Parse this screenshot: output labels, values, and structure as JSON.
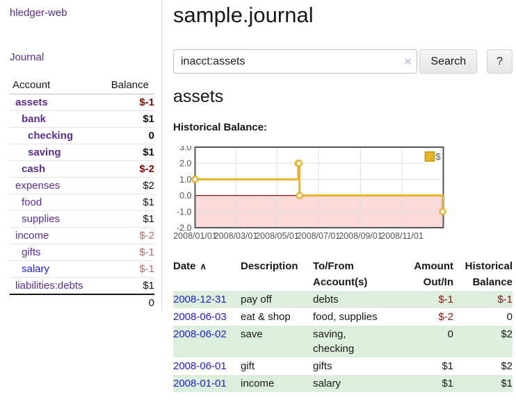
{
  "sidebar": {
    "brand": "hledger-web",
    "journal_link": "Journal",
    "accounts_table": {
      "headers": [
        "Account",
        "Balance"
      ],
      "rows": [
        {
          "name": "assets",
          "level": 0,
          "bold": true,
          "color": "purple",
          "balance": "$-1",
          "balance_style": "neg-strong"
        },
        {
          "name": "bank",
          "level": 1,
          "bold": true,
          "color": "purple",
          "balance": "$1",
          "balance_style": "strong"
        },
        {
          "name": "checking",
          "level": 2,
          "bold": true,
          "color": "purple",
          "balance": "0",
          "balance_style": "strong"
        },
        {
          "name": "saving",
          "level": 2,
          "bold": true,
          "color": "purple",
          "balance": "$1",
          "balance_style": "strong"
        },
        {
          "name": "cash",
          "level": 1,
          "bold": true,
          "color": "purple",
          "balance": "$-2",
          "balance_style": "neg-strong"
        },
        {
          "name": "expenses",
          "level": 0,
          "bold": false,
          "color": "purple",
          "balance": "$2",
          "balance_style": "plain"
        },
        {
          "name": "food",
          "level": 1,
          "bold": false,
          "color": "purple",
          "balance": "$1",
          "balance_style": "plain"
        },
        {
          "name": "supplies",
          "level": 1,
          "bold": false,
          "color": "purple",
          "balance": "$1",
          "balance_style": "plain"
        },
        {
          "name": "income",
          "level": 0,
          "bold": false,
          "color": "purple",
          "balance": "$-2",
          "balance_style": "neg-soft"
        },
        {
          "name": "gifts",
          "level": 1,
          "bold": false,
          "color": "purple",
          "balance": "$-1",
          "balance_style": "neg-soft"
        },
        {
          "name": "salary",
          "level": 1,
          "bold": false,
          "color": "blue",
          "balance": "$-1",
          "balance_style": "neg-soft"
        },
        {
          "name": "liabilities:debts",
          "level": 0,
          "bold": false,
          "color": "purple",
          "balance": "$1",
          "balance_style": "plain"
        }
      ],
      "total": "0"
    }
  },
  "main": {
    "title": "sample.journal",
    "search": {
      "value": "inacct:assets",
      "clear_icon": "×",
      "button_label": "Search",
      "help_label": "?"
    },
    "account_heading": "assets",
    "chart_title": "Historical Balance:"
  },
  "register": {
    "headers": [
      "Date",
      "Description",
      "To/From Account(s)",
      "Amount Out/In",
      "Historical Balance"
    ],
    "header_keys": [
      "date",
      "description",
      "accounts",
      "amount",
      "balance"
    ],
    "sort": {
      "column": "Date",
      "icon": "∧"
    },
    "transactions": [
      {
        "date": "2008-12-31",
        "description": "pay off",
        "accounts": [
          "debts"
        ],
        "amount": "$-1",
        "amount_negative": true,
        "balance": "$-1",
        "balance_negative": true
      },
      {
        "date": "2008-06-03",
        "description": "eat & shop",
        "accounts": [
          "food, supplies"
        ],
        "amount": "$-2",
        "amount_negative": true,
        "balance": "0",
        "balance_negative": false
      },
      {
        "date": "2008-06-02",
        "description": "save",
        "accounts": [
          "saving,",
          "checking"
        ],
        "amount": "0",
        "amount_negative": false,
        "balance": "$2",
        "balance_negative": false
      },
      {
        "date": "2008-06-01",
        "description": "gift",
        "accounts": [
          "gifts"
        ],
        "amount": "$1",
        "amount_negative": false,
        "balance": "$2",
        "balance_negative": false
      },
      {
        "date": "2008-01-01",
        "description": "income",
        "accounts": [
          "salary"
        ],
        "amount": "$1",
        "amount_negative": false,
        "balance": "$1",
        "balance_negative": false
      }
    ]
  },
  "chart_data": {
    "type": "line",
    "step": true,
    "title": "Historical Balance:",
    "xlabel": "",
    "ylabel": "",
    "x_range": [
      "2008-01-01",
      "2009-01-01"
    ],
    "ylim": [
      -2,
      3
    ],
    "grid": true,
    "legend_position": "top-right",
    "legend": [
      {
        "label": "$",
        "color": "#e8b429"
      }
    ],
    "y_ticks": [
      "3.0",
      "2.0",
      "1.0",
      "0.0",
      "-1.0",
      "-2.0"
    ],
    "x_ticks": [
      {
        "label": "2008/01/01",
        "date": "2008-01-01"
      },
      {
        "label": "2008/03/01",
        "date": "2008-03-01"
      },
      {
        "label": "2008/05/01",
        "date": "2008-05-01"
      },
      {
        "label": "2008/07/01",
        "date": "2008-07-01"
      },
      {
        "label": "2008/09/01",
        "date": "2008-09-01"
      },
      {
        "label": "2008/11/01",
        "date": "2008-11-01"
      }
    ],
    "series": [
      {
        "name": "$",
        "color": "#e8b429",
        "points": [
          [
            "2008-01-01",
            1
          ],
          [
            "2008-06-01",
            2
          ],
          [
            "2008-06-02",
            2
          ],
          [
            "2008-06-03",
            0
          ],
          [
            "2008-12-31",
            -1
          ]
        ]
      }
    ],
    "zero_line_color": "#8d1212",
    "negative_region_fill": "#fcdada",
    "gridline_color": "#e0e0e0",
    "border_color": "#545454",
    "axis_label_color": "#545454"
  },
  "colors": {
    "link_purple": "#5b2d90",
    "link_blue": "#2222cc",
    "negative_strong": "#7d0e06",
    "negative_soft": "#b36a6a",
    "table_negative": "#8b1513",
    "row_green": "#dceedc",
    "series_gold": "#e8b429"
  }
}
